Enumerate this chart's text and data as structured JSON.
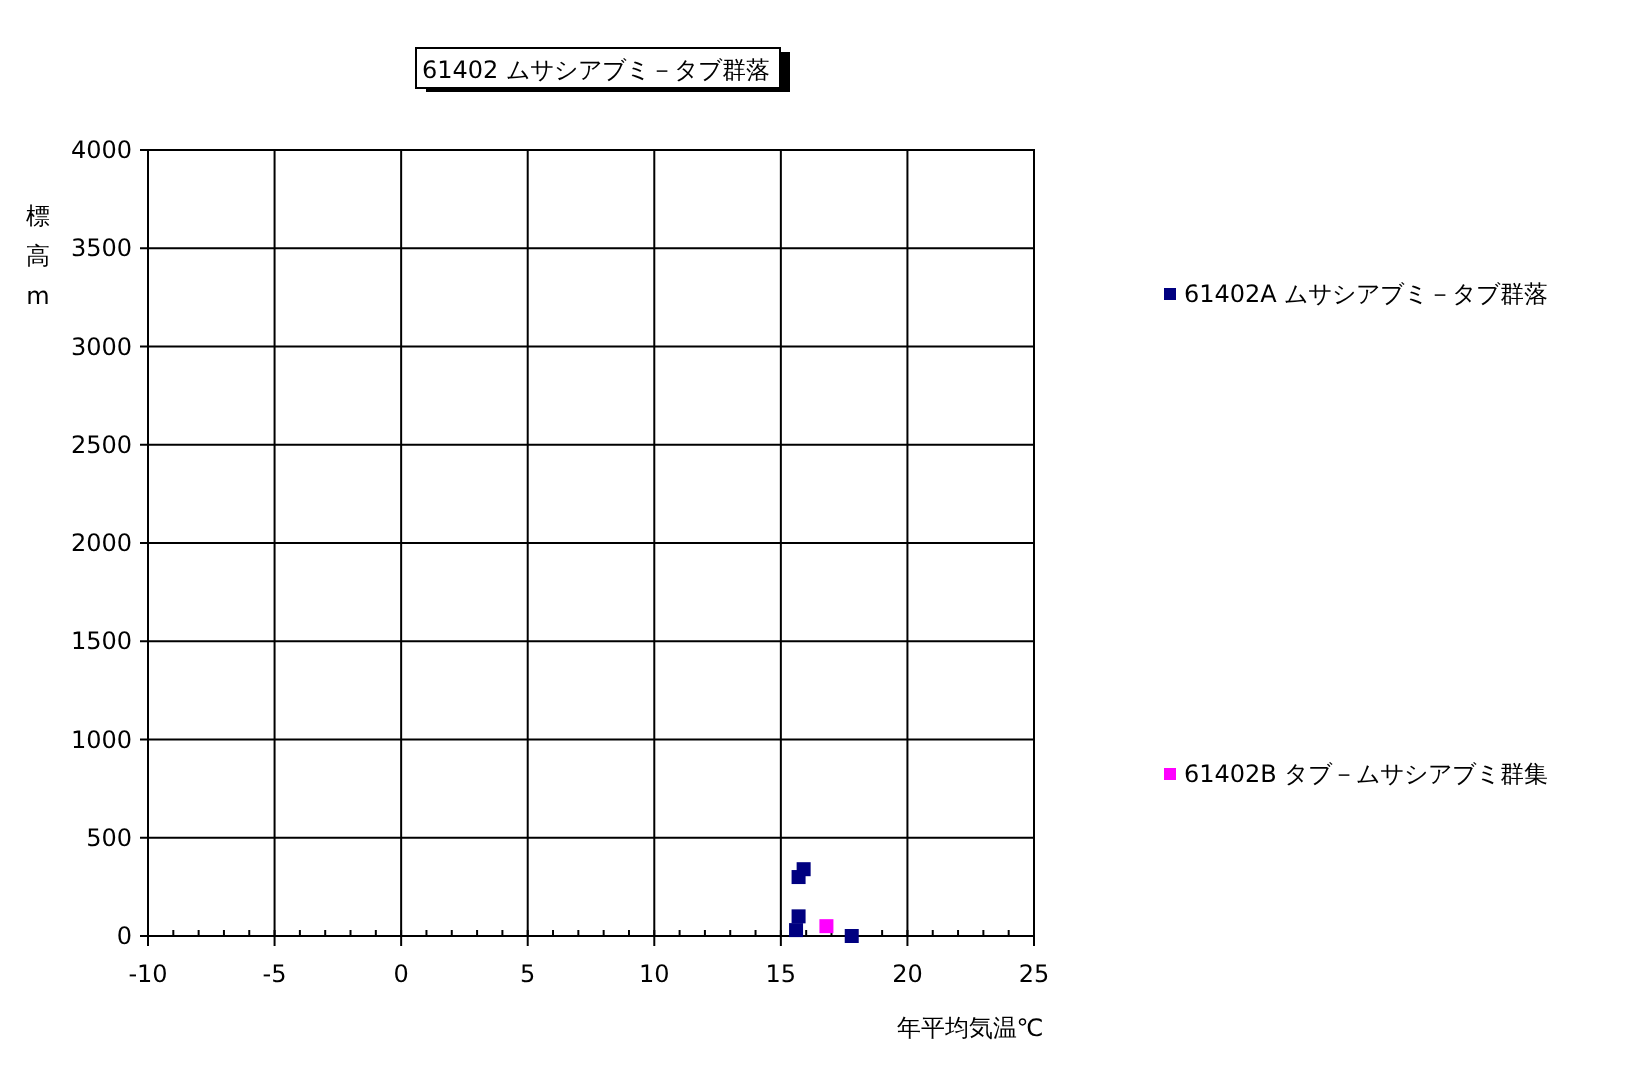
{
  "chart_data": {
    "type": "scatter",
    "title": "61402 ムサシアブミ－タブ群落",
    "xlabel": "年平均気温℃",
    "ylabel": "標高m",
    "series": [
      {
        "name": "61402A ムサシアブミ－タブ群落",
        "color": "#000080",
        "x": [
          15.7,
          15.9,
          15.7,
          15.6,
          17.8
        ],
        "values": [
          300,
          340,
          100,
          30,
          0
        ]
      },
      {
        "name": "61402B タブ－ムサシアブミ群集",
        "color": "#ff00ff",
        "x": [
          16.8
        ],
        "values": [
          50
        ]
      }
    ],
    "xlim": [
      -10,
      25
    ],
    "ylim": [
      0,
      4000
    ],
    "xticks": [
      -10,
      -5,
      0,
      5,
      10,
      15,
      20,
      25
    ],
    "yticks": [
      0,
      500,
      1000,
      1500,
      2000,
      2500,
      3000,
      3500,
      4000
    ],
    "grid": true,
    "legend": "right",
    "marker": "square"
  }
}
